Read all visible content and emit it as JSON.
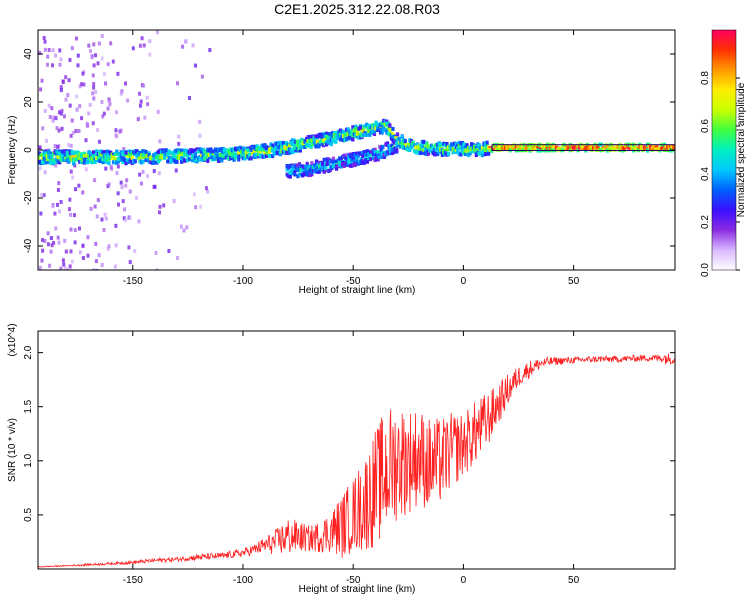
{
  "title": "C2E1.2025.312.22.08.R03",
  "chart_data": [
    {
      "type": "heatmap",
      "title": "C2E1.2025.312.22.08.R03",
      "xlabel": "Height of straight line (km)",
      "ylabel": "Frequency (Hz)",
      "xlim": [
        -193,
        96
      ],
      "ylim": [
        -50,
        50
      ],
      "x_ticks": [
        "-150",
        "-100",
        "-50",
        "0",
        "50"
      ],
      "x_tick_values": [
        -150,
        -100,
        -50,
        0,
        50
      ],
      "y_ticks": [
        "-40",
        "-20",
        "0",
        "20",
        "40"
      ],
      "y_tick_values": [
        -40,
        -20,
        0,
        20,
        40
      ],
      "colorbar": {
        "label": "Normalized spectral amplitude",
        "range": [
          0,
          1
        ],
        "ticks": [
          "0.0",
          "0.2",
          "0.4",
          "0.6",
          "0.8"
        ],
        "tick_values": [
          0.0,
          0.2,
          0.4,
          0.6,
          0.8
        ],
        "colormap": [
          "#ffffff",
          "#d9b8ff",
          "#8a2be2",
          "#3a10ff",
          "#0060ff",
          "#00c8ff",
          "#00f0c0",
          "#40ff40",
          "#c8ff00",
          "#ffee00",
          "#ff9900",
          "#ff3000",
          "#ff0060"
        ]
      },
      "ridges": [
        {
          "name": "",
          "x": [
            -193,
            -170,
            -150,
            -130,
            -110,
            -100,
            -90,
            -80,
            -70,
            -60,
            -50,
            -45,
            -40,
            -35,
            -30,
            -25,
            -20,
            -10,
            0,
            5,
            10,
            15,
            30,
            50,
            70,
            96
          ],
          "y": [
            -3,
            -3,
            -3,
            -2.5,
            -2,
            -1.5,
            -0.5,
            1,
            3,
            5,
            7,
            8,
            9,
            10,
            4,
            2,
            1,
            0.5,
            0.5,
            0,
            0.5,
            1,
            1,
            1,
            1,
            1
          ]
        },
        {
          "name": "",
          "x": [
            -80,
            -70,
            -60,
            -50,
            -45,
            -40,
            -35,
            -30
          ],
          "y": [
            -9,
            -8,
            -6,
            -4,
            -3,
            -2,
            0,
            2
          ]
        }
      ]
    },
    {
      "type": "line",
      "xlabel": "Height of straight line (km)",
      "ylabel": "SNR (10 * v/v)",
      "y_multiplier": "(x10^4)",
      "color": "#ff2020",
      "xlim": [
        -193,
        96
      ],
      "ylim": [
        0,
        2.2
      ],
      "x_ticks": [
        "-150",
        "-100",
        "-50",
        "0",
        "50"
      ],
      "x_tick_values": [
        -150,
        -100,
        -50,
        0,
        50
      ],
      "y_ticks": [
        "0.5",
        "1.0",
        "1.5",
        "2.0"
      ],
      "y_tick_values": [
        0.5,
        1.0,
        1.5,
        2.0
      ],
      "series": [
        {
          "name": "",
          "x": [
            -193,
            -180,
            -170,
            -160,
            -150,
            -140,
            -130,
            -120,
            -110,
            -100,
            -95,
            -90,
            -85,
            -80,
            -75,
            -70,
            -65,
            -60,
            -55,
            -50,
            -45,
            -40,
            -35,
            -30,
            -25,
            -20,
            -15,
            -10,
            -5,
            0,
            5,
            10,
            15,
            20,
            25,
            30,
            35,
            40,
            50,
            60,
            70,
            80,
            85,
            90,
            92,
            96
          ],
          "y": [
            0.02,
            0.03,
            0.04,
            0.05,
            0.06,
            0.08,
            0.09,
            0.11,
            0.12,
            0.15,
            0.18,
            0.22,
            0.25,
            0.3,
            0.3,
            0.28,
            0.3,
            0.35,
            0.4,
            0.5,
            0.6,
            0.75,
            0.9,
            1.0,
            1.0,
            1.05,
            0.95,
            1.0,
            1.1,
            1.15,
            1.25,
            1.35,
            1.5,
            1.65,
            1.78,
            1.85,
            1.9,
            1.92,
            1.93,
            1.94,
            1.94,
            1.95,
            1.95,
            1.95,
            1.95,
            1.93
          ],
          "spike_amplitude": [
            0.005,
            0.005,
            0.01,
            0.01,
            0.015,
            0.02,
            0.02,
            0.03,
            0.03,
            0.04,
            0.05,
            0.08,
            0.12,
            0.18,
            0.15,
            0.12,
            0.15,
            0.2,
            0.3,
            0.35,
            0.45,
            0.55,
            0.6,
            0.55,
            0.5,
            0.45,
            0.45,
            0.4,
            0.35,
            0.3,
            0.3,
            0.28,
            0.2,
            0.15,
            0.1,
            0.08,
            0.05,
            0.04,
            0.03,
            0.03,
            0.03,
            0.03,
            0.03,
            0.04,
            0.06,
            0.03
          ]
        }
      ]
    }
  ]
}
